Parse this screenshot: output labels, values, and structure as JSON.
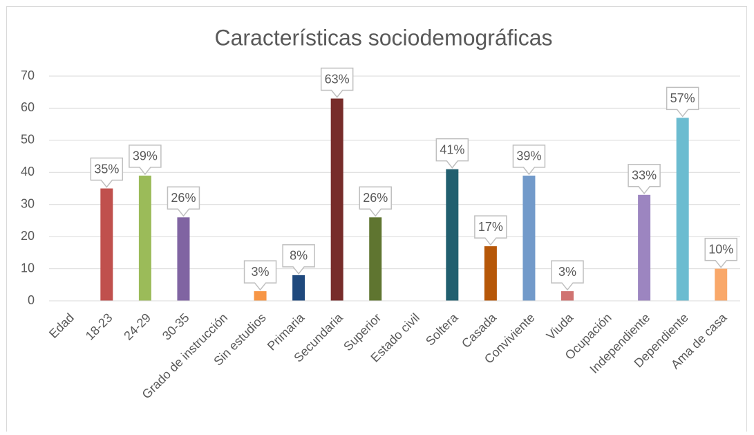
{
  "chart_data": {
    "type": "bar",
    "title": "Características sociodemográficas",
    "categories": [
      "Edad",
      "18-23",
      "24-29",
      "30-35",
      "Grado de instrucción",
      "Sin estudios",
      "Primaria",
      "Secundaria",
      "Superior",
      "Estado civil",
      "Soltera",
      "Casada",
      "Conviviente",
      "Viuda",
      "Ocupación",
      "Independiente",
      "Dependiente",
      "Ama de casa"
    ],
    "values": [
      null,
      35,
      39,
      26,
      null,
      3,
      8,
      63,
      26,
      null,
      41,
      17,
      39,
      3,
      null,
      33,
      57,
      10
    ],
    "value_labels": [
      null,
      "35%",
      "39%",
      "26%",
      null,
      "3%",
      "8%",
      "63%",
      "26%",
      null,
      "41%",
      "17%",
      "39%",
      "3%",
      null,
      "33%",
      "57%",
      "10%"
    ],
    "colors": [
      null,
      "#c0504d",
      "#9bbb59",
      "#8064a2",
      null,
      "#f79646",
      "#1f497d",
      "#772c2a",
      "#5f7530",
      null,
      "#215f6f",
      "#b65708",
      "#729aca",
      "#d07371",
      null,
      "#9c85c0",
      "#6bbcd0",
      "#f9a86a"
    ],
    "ylim": [
      0,
      70
    ],
    "yticks": [
      0,
      10,
      20,
      30,
      40,
      50,
      60,
      70
    ],
    "grid": true
  }
}
